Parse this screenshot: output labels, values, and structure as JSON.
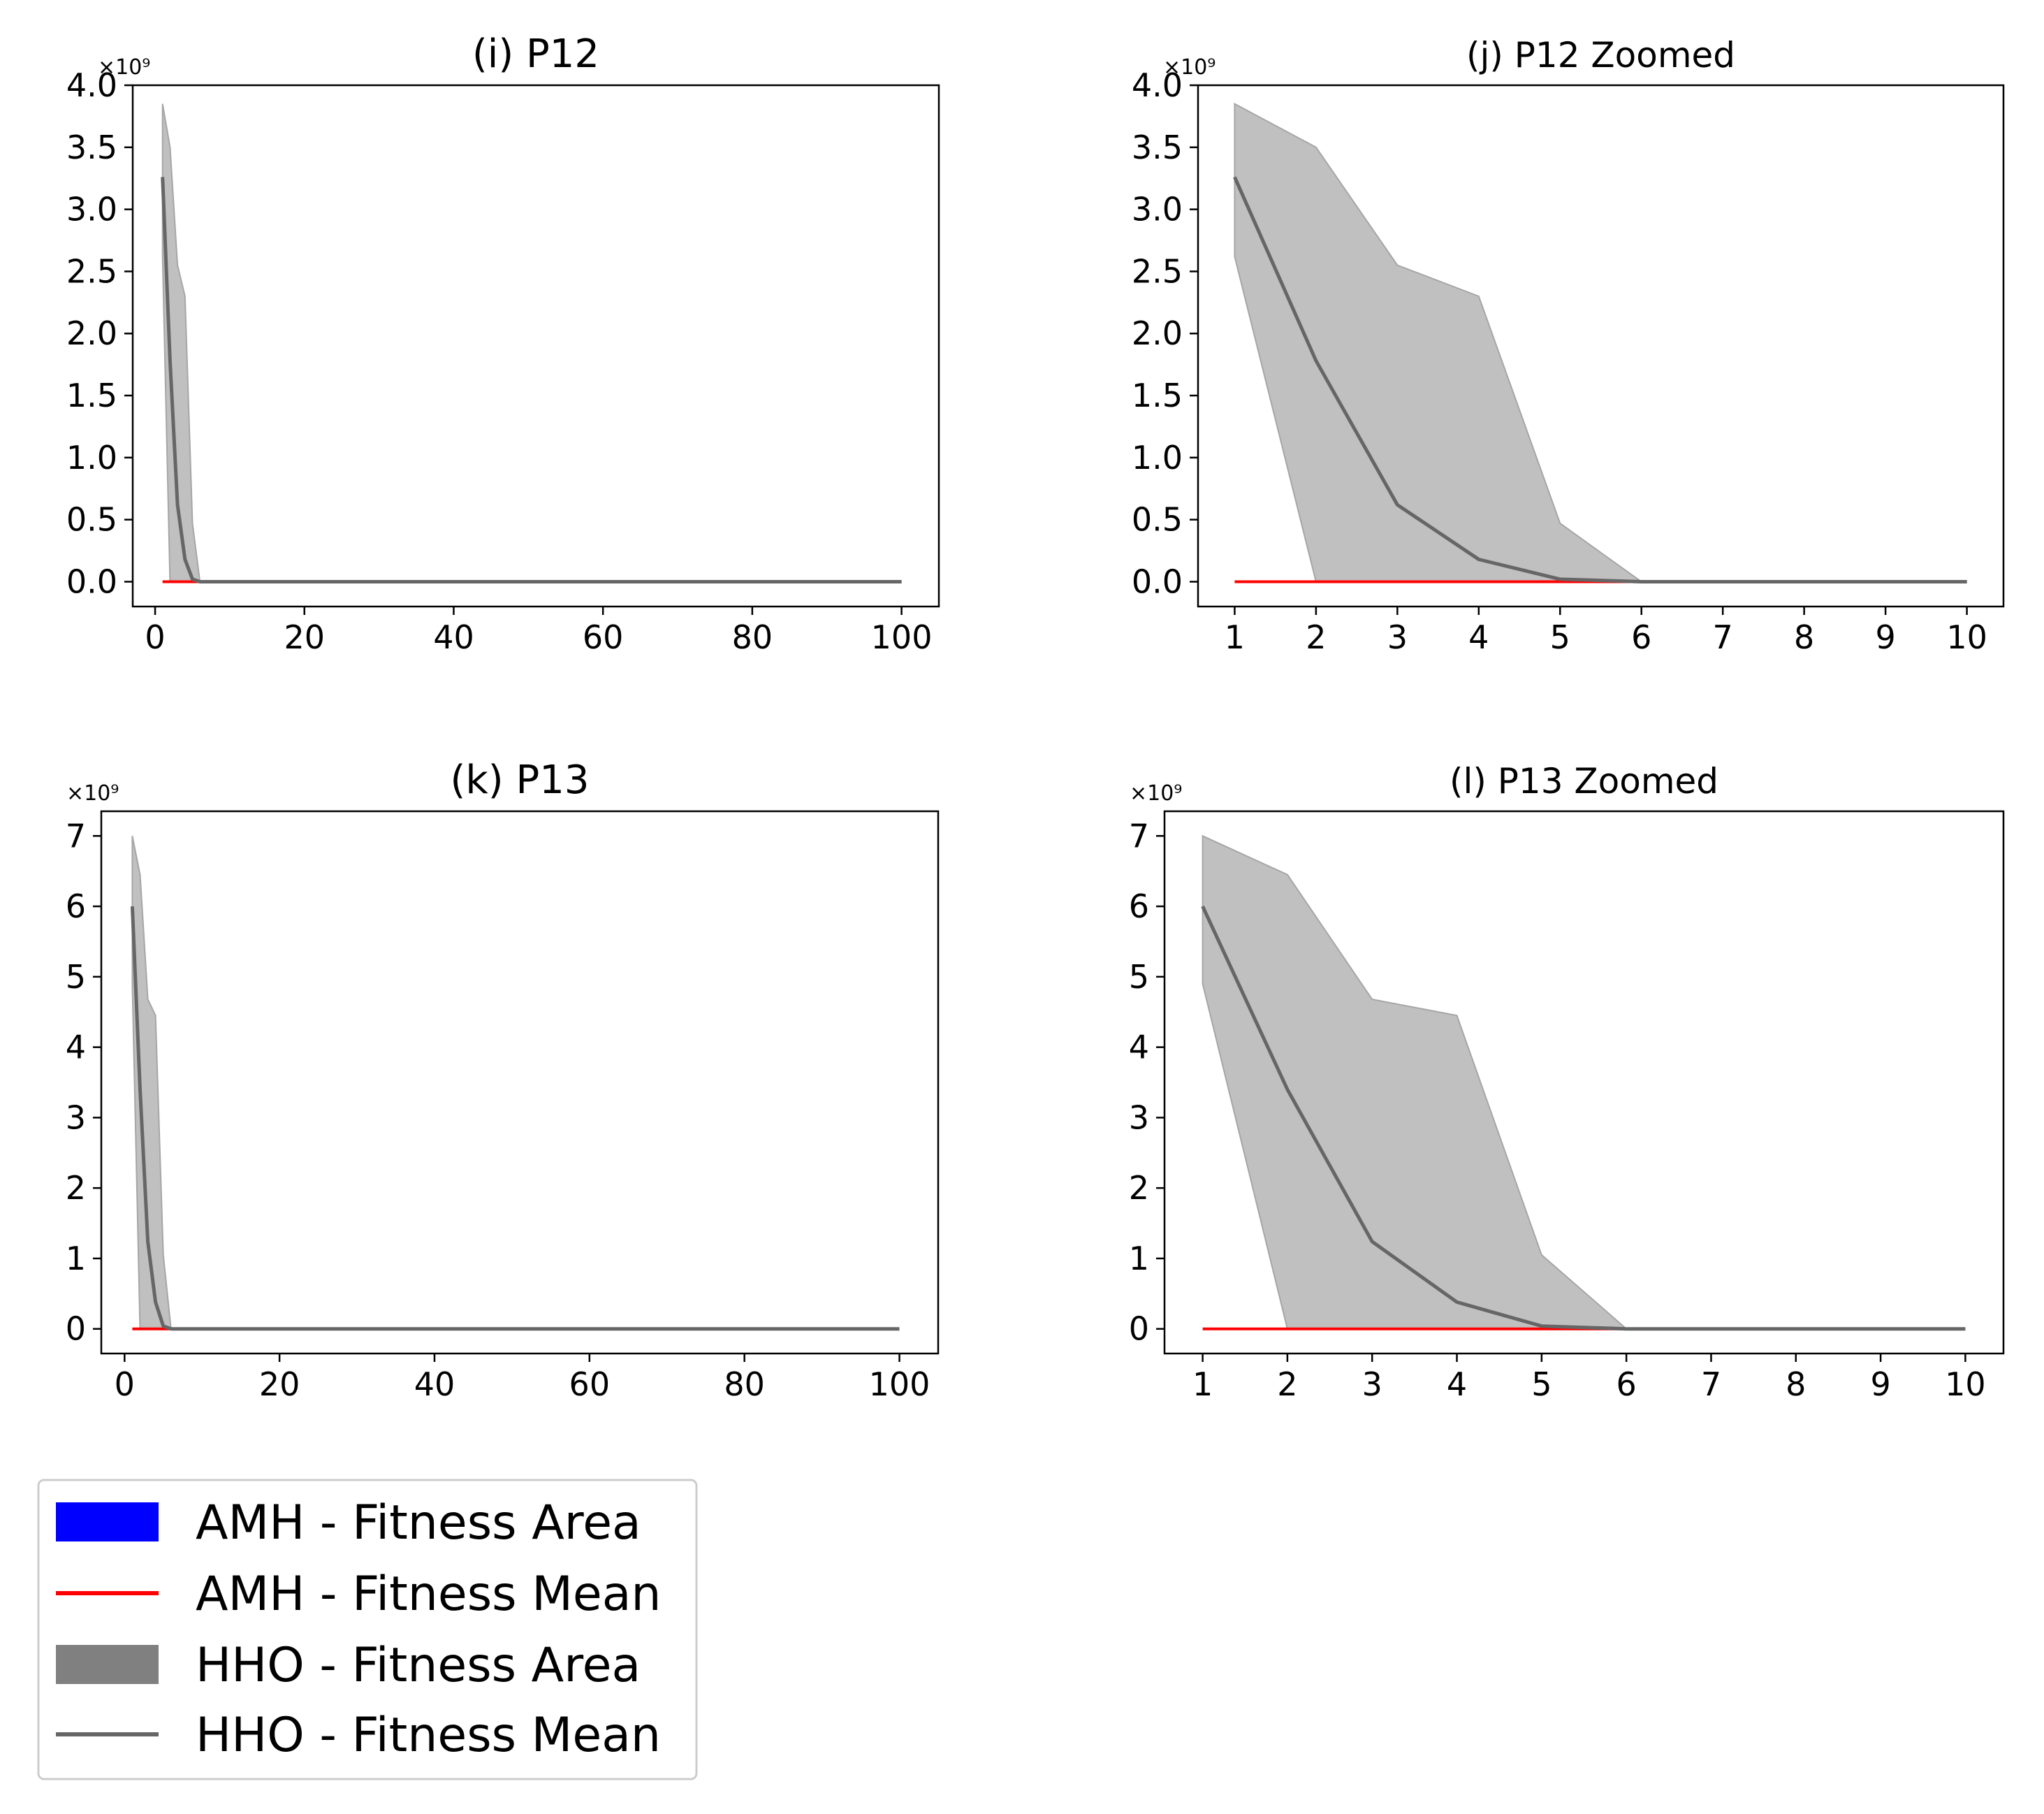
{
  "colors": {
    "amh_area": "#0000ff",
    "amh_mean": "#ff0000",
    "hho_area": "#808080",
    "hho_band": "#c0c0c0",
    "hho_mean": "#666666"
  },
  "legend": {
    "entries": [
      {
        "label": "AMH - Fitness Area",
        "kind": "patch",
        "color": "#0000ff"
      },
      {
        "label": "AMH - Fitness Mean",
        "kind": "line",
        "color": "#ff0000"
      },
      {
        "label": "HHO - Fitness Area",
        "kind": "patch",
        "color": "#808080"
      },
      {
        "label": "HHO - Fitness Mean",
        "kind": "line",
        "color": "#666666"
      }
    ]
  },
  "chart_data": [
    {
      "id": "p12",
      "type": "area",
      "title": "(i) P12",
      "xlabel": "",
      "ylabel": "",
      "exponent_label": "×10⁹",
      "xlim": [
        -3,
        105
      ],
      "ylim": [
        -0.2,
        4.0
      ],
      "xticks": [
        0,
        20,
        40,
        60,
        80,
        100
      ],
      "xtick_labels": [
        "0",
        "20",
        "40",
        "60",
        "80",
        "100"
      ],
      "yticks": [
        0,
        0.5,
        1.0,
        1.5,
        2.0,
        2.5,
        3.0,
        3.5,
        4.0
      ],
      "ytick_labels": [
        "0.0",
        "0.5",
        "1.0",
        "1.5",
        "2.0",
        "2.5",
        "3.0",
        "3.5",
        "4.0"
      ],
      "series": [
        {
          "name": "HHO - Fitness Area",
          "kind": "band",
          "x": [
            1,
            2,
            3,
            4,
            5,
            6,
            100
          ],
          "upper": [
            3.85,
            3.5,
            2.55,
            2.3,
            0.47,
            0.0,
            0.0
          ],
          "lower": [
            2.62,
            0.0,
            0.0,
            0.0,
            0.0,
            0.0,
            0.0
          ]
        },
        {
          "name": "AMH - Fitness Mean",
          "kind": "line",
          "x": [
            1,
            100
          ],
          "y": [
            0,
            0
          ]
        },
        {
          "name": "HHO - Fitness Mean",
          "kind": "line",
          "x": [
            1,
            2,
            3,
            4,
            5,
            6,
            100
          ],
          "y": [
            3.26,
            1.78,
            0.62,
            0.18,
            0.02,
            0.0,
            0.0
          ]
        }
      ]
    },
    {
      "id": "p12z",
      "type": "area",
      "title": "(j) P12 Zoomed",
      "xlabel": "",
      "ylabel": "",
      "exponent_label": "×10⁹",
      "xlim": [
        0.55,
        10.45
      ],
      "ylim": [
        -0.2,
        4.0
      ],
      "xticks": [
        1,
        2,
        3,
        4,
        5,
        6,
        7,
        8,
        9,
        10
      ],
      "xtick_labels": [
        "1",
        "2",
        "3",
        "4",
        "5",
        "6",
        "7",
        "8",
        "9",
        "10"
      ],
      "yticks": [
        0,
        0.5,
        1.0,
        1.5,
        2.0,
        2.5,
        3.0,
        3.5,
        4.0
      ],
      "ytick_labels": [
        "0.0",
        "0.5",
        "1.0",
        "1.5",
        "2.0",
        "2.5",
        "3.0",
        "3.5",
        "4.0"
      ],
      "series": [
        {
          "name": "HHO - Fitness Area",
          "kind": "band",
          "x": [
            1,
            2,
            3,
            4,
            5,
            6,
            7,
            8,
            9,
            10
          ],
          "upper": [
            3.85,
            3.5,
            2.55,
            2.3,
            0.47,
            0.0,
            0.0,
            0.0,
            0.0,
            0.0
          ],
          "lower": [
            2.62,
            0.0,
            0.0,
            0.0,
            0.0,
            0.0,
            0.0,
            0.0,
            0.0,
            0.0
          ]
        },
        {
          "name": "AMH - Fitness Mean",
          "kind": "line",
          "x": [
            1,
            10
          ],
          "y": [
            0,
            0
          ]
        },
        {
          "name": "HHO - Fitness Mean",
          "kind": "line",
          "x": [
            1,
            2,
            3,
            4,
            5,
            6,
            7,
            8,
            9,
            10
          ],
          "y": [
            3.26,
            1.78,
            0.62,
            0.18,
            0.02,
            0.0,
            0.0,
            0.0,
            0.0,
            0.0
          ]
        }
      ]
    },
    {
      "id": "p13",
      "type": "area",
      "title": "(k) P13",
      "xlabel": "",
      "ylabel": "",
      "exponent_label": "×10⁹",
      "xlim": [
        -3,
        105
      ],
      "ylim": [
        -0.35,
        7.35
      ],
      "xticks": [
        0,
        20,
        40,
        60,
        80,
        100
      ],
      "xtick_labels": [
        "0",
        "20",
        "40",
        "60",
        "80",
        "100"
      ],
      "yticks": [
        0,
        1,
        2,
        3,
        4,
        5,
        6,
        7
      ],
      "ytick_labels": [
        "0",
        "1",
        "2",
        "3",
        "4",
        "5",
        "6",
        "7"
      ],
      "series": [
        {
          "name": "HHO - Fitness Area",
          "kind": "band",
          "x": [
            1,
            2,
            3,
            4,
            5,
            6,
            100
          ],
          "upper": [
            7.0,
            6.45,
            4.68,
            4.45,
            1.05,
            0.0,
            0.0
          ],
          "lower": [
            4.9,
            0.0,
            0.0,
            0.0,
            0.0,
            0.0,
            0.0
          ]
        },
        {
          "name": "AMH - Fitness Mean",
          "kind": "line",
          "x": [
            1,
            100
          ],
          "y": [
            0,
            0
          ]
        },
        {
          "name": "HHO - Fitness Mean",
          "kind": "line",
          "x": [
            1,
            2,
            3,
            4,
            5,
            6,
            100
          ],
          "y": [
            6.0,
            3.4,
            1.24,
            0.38,
            0.04,
            0.0,
            0.0
          ]
        }
      ]
    },
    {
      "id": "p13z",
      "type": "area",
      "title": "(l) P13 Zoomed",
      "xlabel": "",
      "ylabel": "",
      "exponent_label": "×10⁹",
      "xlim": [
        0.55,
        10.45
      ],
      "ylim": [
        -0.35,
        7.35
      ],
      "xticks": [
        1,
        2,
        3,
        4,
        5,
        6,
        7,
        8,
        9,
        10
      ],
      "xtick_labels": [
        "1",
        "2",
        "3",
        "4",
        "5",
        "6",
        "7",
        "8",
        "9",
        "10"
      ],
      "yticks": [
        0,
        1,
        2,
        3,
        4,
        5,
        6,
        7
      ],
      "ytick_labels": [
        "0",
        "1",
        "2",
        "3",
        "4",
        "5",
        "6",
        "7"
      ],
      "series": [
        {
          "name": "HHO - Fitness Area",
          "kind": "band",
          "x": [
            1,
            2,
            3,
            4,
            5,
            6,
            7,
            8,
            9,
            10
          ],
          "upper": [
            7.0,
            6.45,
            4.68,
            4.45,
            1.05,
            0.0,
            0.0,
            0.0,
            0.0,
            0.0
          ],
          "lower": [
            4.9,
            0.0,
            0.0,
            0.0,
            0.0,
            0.0,
            0.0,
            0.0,
            0.0,
            0.0
          ]
        },
        {
          "name": "AMH - Fitness Mean",
          "kind": "line",
          "x": [
            1,
            10
          ],
          "y": [
            0,
            0
          ]
        },
        {
          "name": "HHO - Fitness Mean",
          "kind": "line",
          "x": [
            1,
            2,
            3,
            4,
            5,
            6,
            7,
            8,
            9,
            10
          ],
          "y": [
            6.0,
            3.4,
            1.24,
            0.38,
            0.04,
            0.0,
            0.0,
            0.0,
            0.0,
            0.0
          ]
        }
      ]
    }
  ]
}
